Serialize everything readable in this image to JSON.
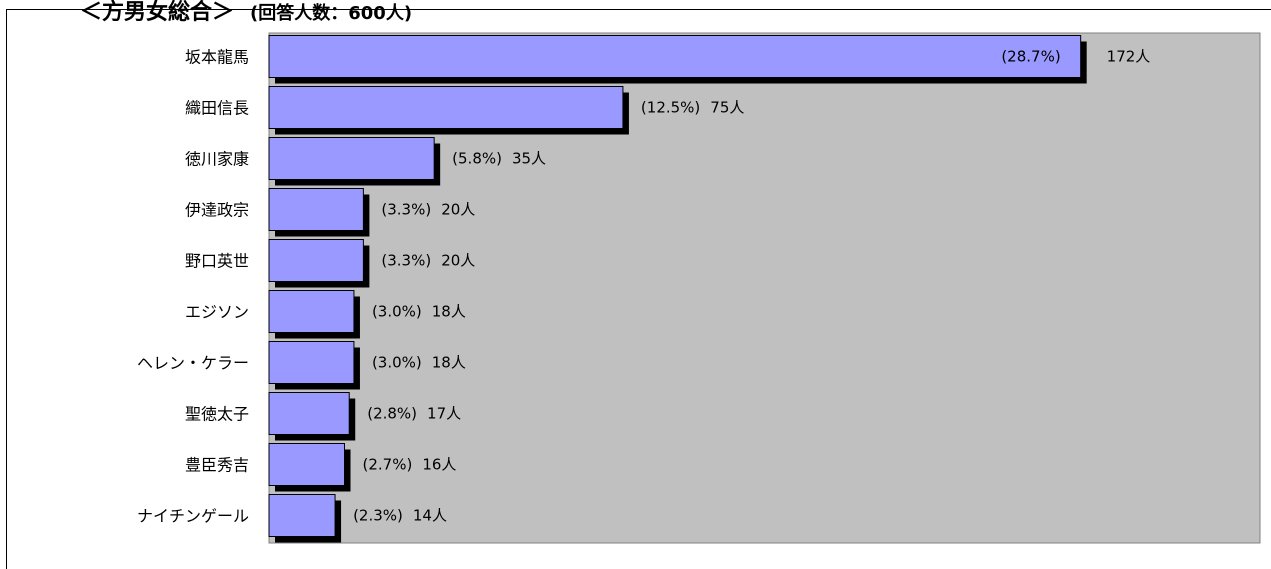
{
  "header": {
    "title": "＜方男女総合＞",
    "subtitle": "(回答人数：600人)"
  },
  "colors": {
    "bar_fill": "#9999ff",
    "bar_shadow": "#000000",
    "plot_background": "#c0c0c0"
  },
  "chart_data": {
    "type": "bar",
    "orientation": "horizontal",
    "title": "",
    "xlabel": "",
    "ylabel": "",
    "grid": false,
    "legend": "none",
    "xlim": [
      0,
      210
    ],
    "categories": [
      "坂本龍馬",
      "織田信長",
      "徳川家康",
      "伊達政宗",
      "野口英世",
      "エジソン",
      "ヘレン・ケラー",
      "聖徳太子",
      "豊臣秀吉",
      "ナイチンゲール"
    ],
    "values": [
      172,
      75,
      35,
      20,
      20,
      18,
      18,
      17,
      16,
      14
    ],
    "percent_labels": [
      "(28.7%)",
      "(12.5%)",
      "(5.8%)",
      "(3.3%)",
      "(3.3%)",
      "(3.0%)",
      "(3.0%)",
      "(2.8%)",
      "(2.7%)",
      "(2.3%)"
    ],
    "value_labels": [
      "172人",
      "75人",
      "35人",
      "20人",
      "20人",
      "18人",
      "18人",
      "17人",
      "16人",
      "14人"
    ]
  }
}
